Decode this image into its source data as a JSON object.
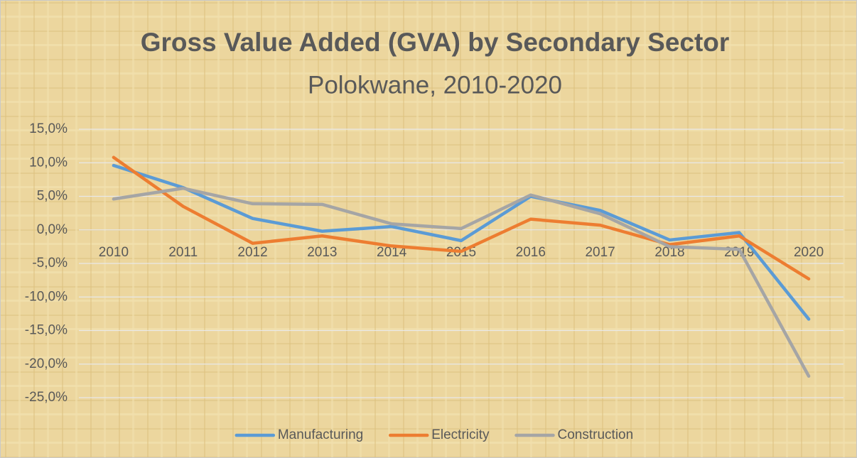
{
  "chart_data": {
    "type": "line",
    "title": "Gross Value Added (GVA) by Secondary Sector",
    "subtitle": "Polokwane, 2010-2020",
    "categories": [
      "2010",
      "2011",
      "2012",
      "2013",
      "2014",
      "2015",
      "2016",
      "2017",
      "2018",
      "2019",
      "2020"
    ],
    "series": [
      {
        "name": "Manufacturing",
        "color": "#5b9bd5",
        "values": [
          9.6,
          6.3,
          1.7,
          -0.2,
          0.5,
          -1.6,
          5.0,
          2.9,
          -1.5,
          -0.4,
          -13.3
        ]
      },
      {
        "name": "Electricity",
        "color": "#ed7d31",
        "values": [
          10.8,
          3.5,
          -2.0,
          -0.9,
          -2.4,
          -3.2,
          1.6,
          0.7,
          -2.2,
          -0.9,
          -7.3
        ]
      },
      {
        "name": "Construction",
        "color": "#a5a5a5",
        "values": [
          4.6,
          6.2,
          3.9,
          3.8,
          0.9,
          0.2,
          5.2,
          2.4,
          -2.5,
          -2.9,
          -21.8
        ]
      }
    ],
    "ylim": [
      -25,
      15
    ],
    "yticks": [
      {
        "value": -25,
        "label": "-25,0%"
      },
      {
        "value": -20,
        "label": "-20,0%"
      },
      {
        "value": -15,
        "label": "-15,0%"
      },
      {
        "value": -10,
        "label": "-10,0%"
      },
      {
        "value": -5,
        "label": "-5,0%"
      },
      {
        "value": 0,
        "label": "0,0%"
      },
      {
        "value": 5,
        "label": "5,0%"
      },
      {
        "value": 10,
        "label": "10,0%"
      },
      {
        "value": 15,
        "label": "15,0%"
      }
    ],
    "grid": true,
    "legend": "bottom"
  }
}
